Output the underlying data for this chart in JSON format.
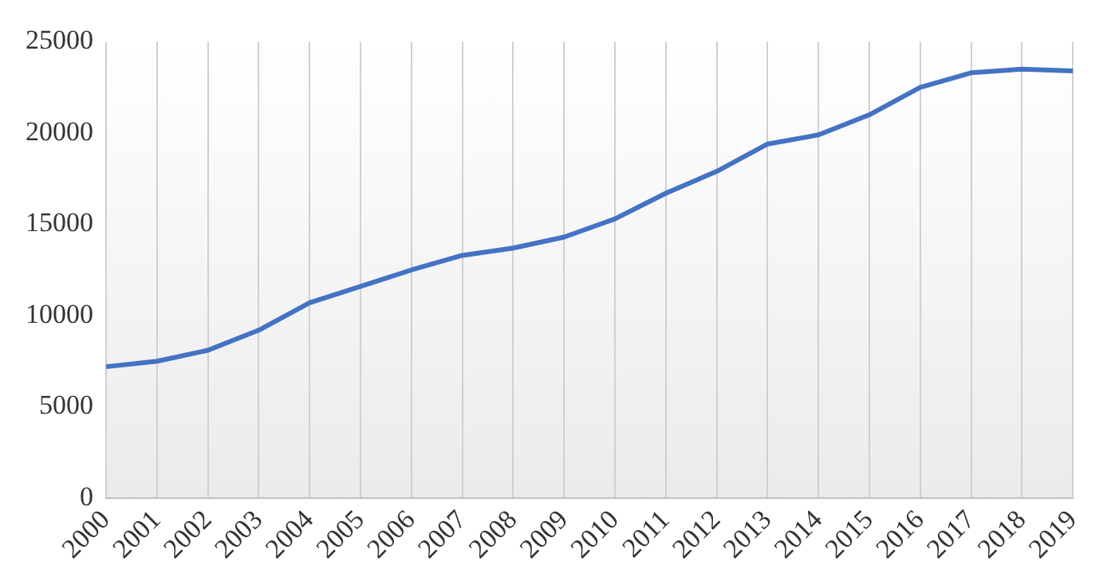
{
  "chart_data": {
    "type": "line",
    "categories": [
      "2000",
      "2001",
      "2002",
      "2003",
      "2004",
      "2005",
      "2006",
      "2007",
      "2008",
      "2009",
      "2010",
      "2011",
      "2012",
      "2013",
      "2014",
      "2015",
      "2016",
      "2017",
      "2018",
      "2019"
    ],
    "series": [
      {
        "color": "#4472c4",
        "values": [
          7200,
          7500,
          8100,
          9200,
          10700,
          11600,
          12500,
          13300,
          13700,
          14300,
          15300,
          16700,
          17900,
          19400,
          19900,
          21000,
          22500,
          23300,
          23500,
          23400
        ]
      }
    ],
    "ylim": [
      0,
      25000
    ],
    "yticks": [
      0,
      5000,
      10000,
      15000,
      20000,
      25000
    ],
    "grid": "x",
    "legend": false,
    "marker": "none",
    "line_style": "solid"
  }
}
